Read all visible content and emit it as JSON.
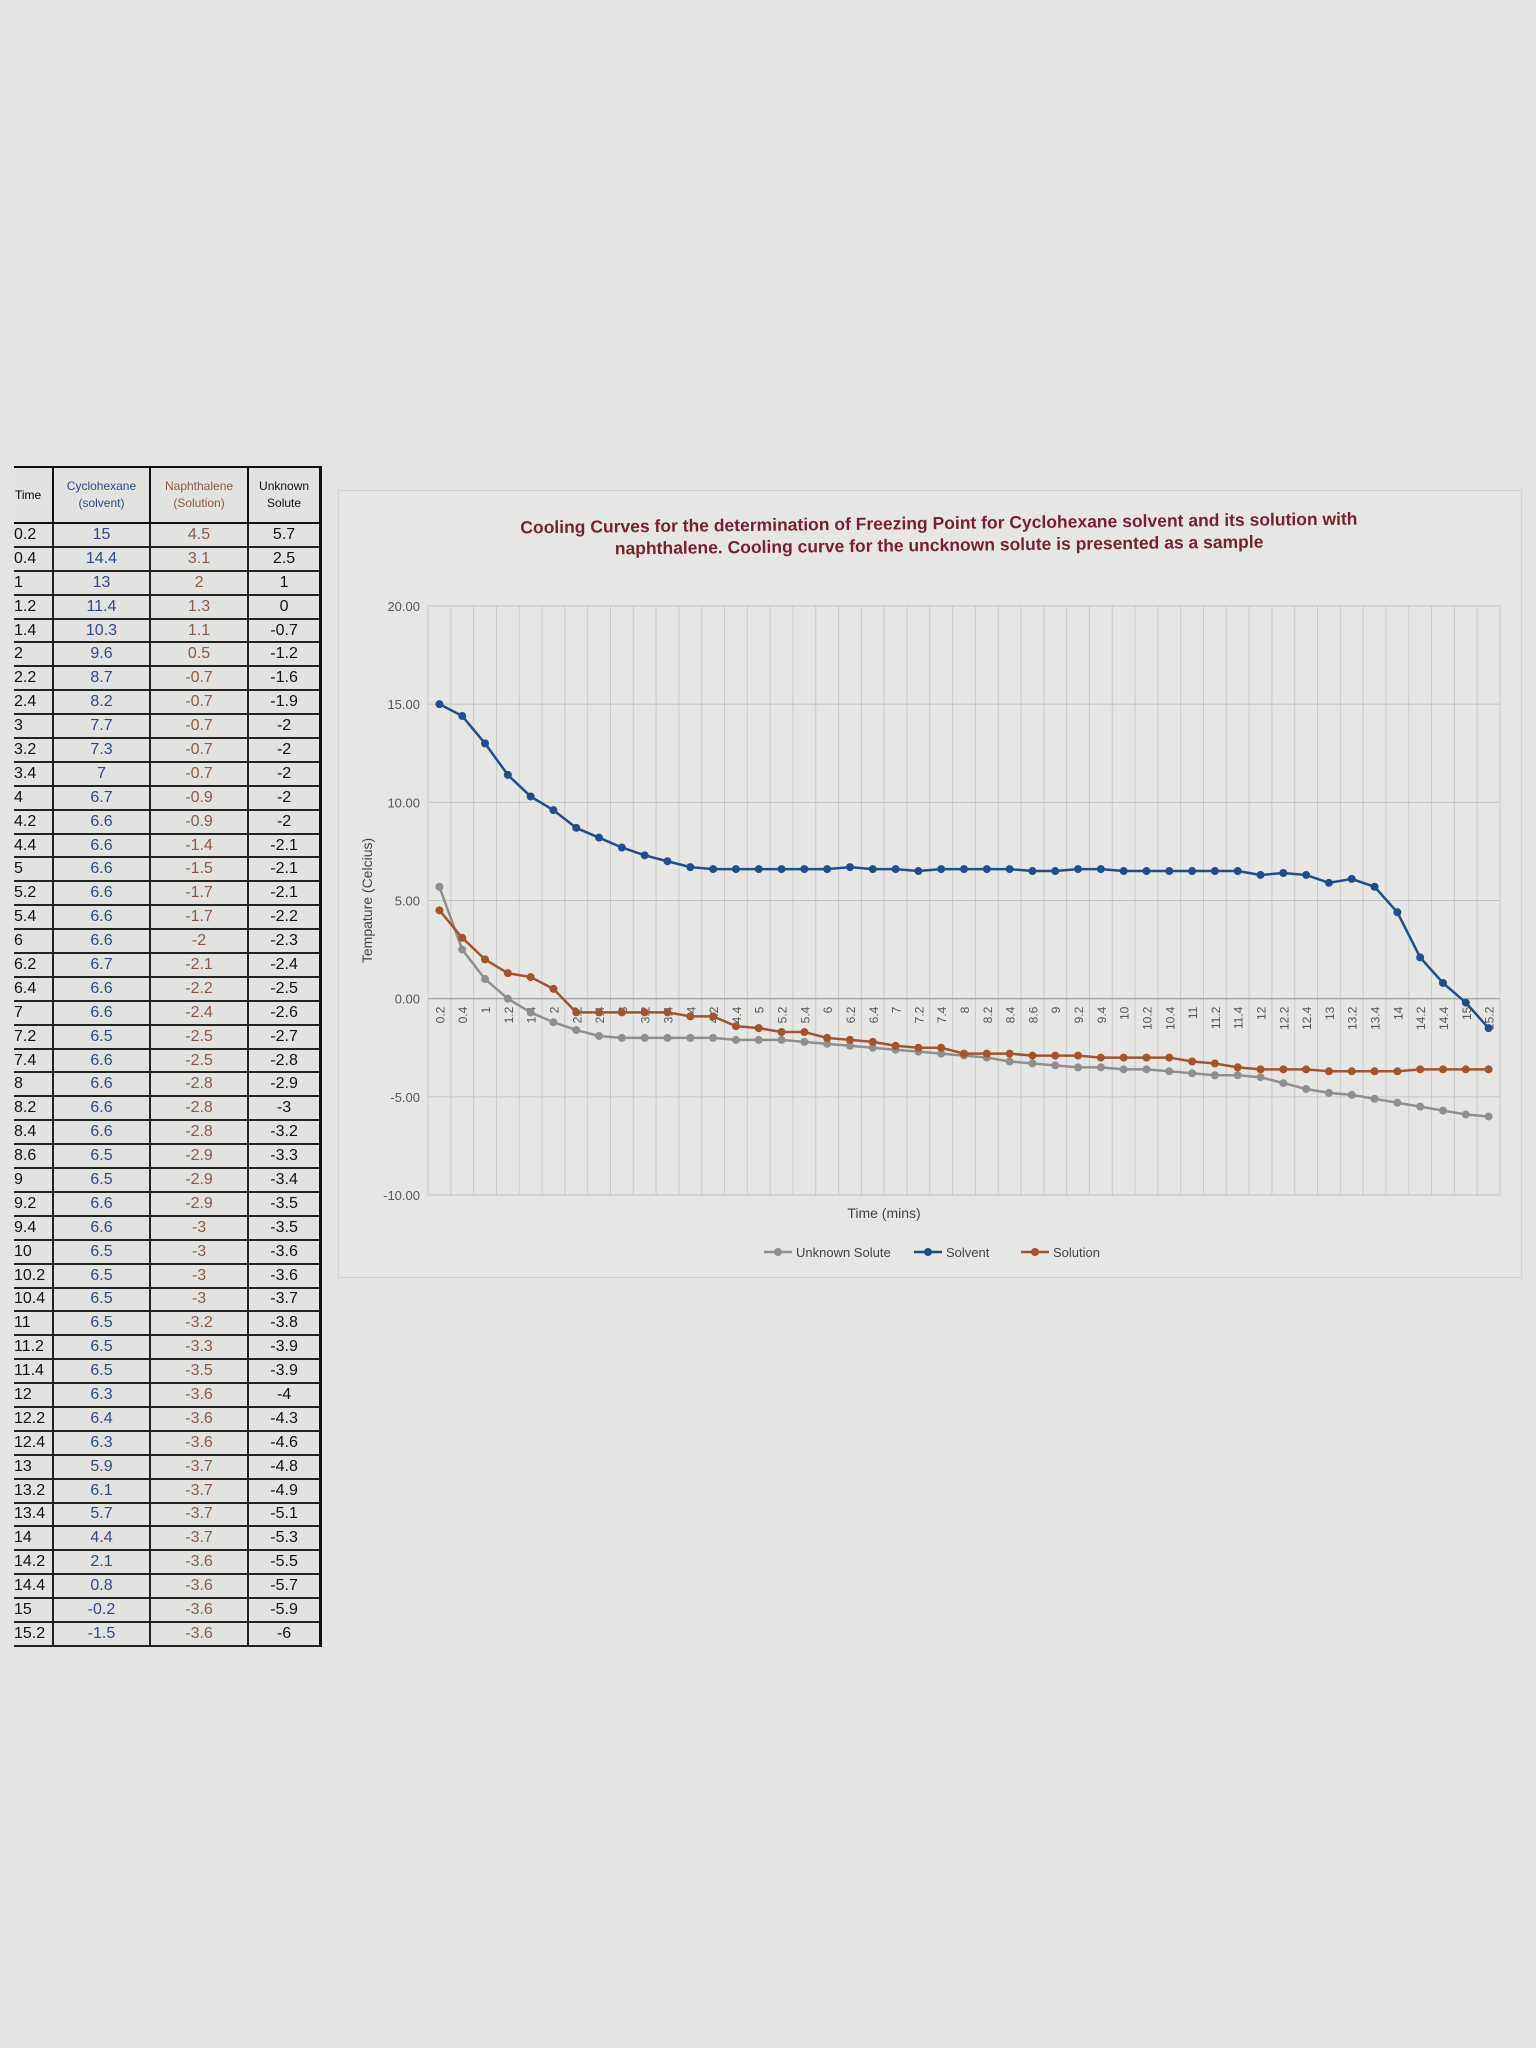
{
  "table": {
    "headers": [
      "Time",
      "Cyclohexane (solvent)",
      "Naphthalene (Solution)",
      "Unknown Solute"
    ],
    "rows": [
      [
        "0.2",
        "15",
        "4.5",
        "5.7"
      ],
      [
        "0.4",
        "14.4",
        "3.1",
        "2.5"
      ],
      [
        "1",
        "13",
        "2",
        "1"
      ],
      [
        "1.2",
        "11.4",
        "1.3",
        "0"
      ],
      [
        "1.4",
        "10.3",
        "1.1",
        "-0.7"
      ],
      [
        "2",
        "9.6",
        "0.5",
        "-1.2"
      ],
      [
        "2.2",
        "8.7",
        "-0.7",
        "-1.6"
      ],
      [
        "2.4",
        "8.2",
        "-0.7",
        "-1.9"
      ],
      [
        "3",
        "7.7",
        "-0.7",
        "-2"
      ],
      [
        "3.2",
        "7.3",
        "-0.7",
        "-2"
      ],
      [
        "3.4",
        "7",
        "-0.7",
        "-2"
      ],
      [
        "4",
        "6.7",
        "-0.9",
        "-2"
      ],
      [
        "4.2",
        "6.6",
        "-0.9",
        "-2"
      ],
      [
        "4.4",
        "6.6",
        "-1.4",
        "-2.1"
      ],
      [
        "5",
        "6.6",
        "-1.5",
        "-2.1"
      ],
      [
        "5.2",
        "6.6",
        "-1.7",
        "-2.1"
      ],
      [
        "5.4",
        "6.6",
        "-1.7",
        "-2.2"
      ],
      [
        "6",
        "6.6",
        "-2",
        "-2.3"
      ],
      [
        "6.2",
        "6.7",
        "-2.1",
        "-2.4"
      ],
      [
        "6.4",
        "6.6",
        "-2.2",
        "-2.5"
      ],
      [
        "7",
        "6.6",
        "-2.4",
        "-2.6"
      ],
      [
        "7.2",
        "6.5",
        "-2.5",
        "-2.7"
      ],
      [
        "7.4",
        "6.6",
        "-2.5",
        "-2.8"
      ],
      [
        "8",
        "6.6",
        "-2.8",
        "-2.9"
      ],
      [
        "8.2",
        "6.6",
        "-2.8",
        "-3"
      ],
      [
        "8.4",
        "6.6",
        "-2.8",
        "-3.2"
      ],
      [
        "8.6",
        "6.5",
        "-2.9",
        "-3.3"
      ],
      [
        "9",
        "6.5",
        "-2.9",
        "-3.4"
      ],
      [
        "9.2",
        "6.6",
        "-2.9",
        "-3.5"
      ],
      [
        "9.4",
        "6.6",
        "-3",
        "-3.5"
      ],
      [
        "10",
        "6.5",
        "-3",
        "-3.6"
      ],
      [
        "10.2",
        "6.5",
        "-3",
        "-3.6"
      ],
      [
        "10.4",
        "6.5",
        "-3",
        "-3.7"
      ],
      [
        "11",
        "6.5",
        "-3.2",
        "-3.8"
      ],
      [
        "11.2",
        "6.5",
        "-3.3",
        "-3.9"
      ],
      [
        "11.4",
        "6.5",
        "-3.5",
        "-3.9"
      ],
      [
        "12",
        "6.3",
        "-3.6",
        "-4"
      ],
      [
        "12.2",
        "6.4",
        "-3.6",
        "-4.3"
      ],
      [
        "12.4",
        "6.3",
        "-3.6",
        "-4.6"
      ],
      [
        "13",
        "5.9",
        "-3.7",
        "-4.8"
      ],
      [
        "13.2",
        "6.1",
        "-3.7",
        "-4.9"
      ],
      [
        "13.4",
        "5.7",
        "-3.7",
        "-5.1"
      ],
      [
        "14",
        "4.4",
        "-3.7",
        "-5.3"
      ],
      [
        "14.2",
        "2.1",
        "-3.6",
        "-5.5"
      ],
      [
        "14.4",
        "0.8",
        "-3.6",
        "-5.7"
      ],
      [
        "15",
        "-0.2",
        "-3.6",
        "-5.9"
      ],
      [
        "15.2",
        "-1.5",
        "-3.6",
        "-6"
      ]
    ]
  },
  "chart_data": {
    "type": "line",
    "title": "Cooling Curves for the determination of Freezing Point for Cyclohexane solvent and its solution with naphthalene. Cooling curve for the uncknown solute is presented as a sample",
    "xlabel": "Time  (mins)",
    "ylabel": "Tempature (Celcius)",
    "ylim": [
      -10,
      20
    ],
    "yticks": [
      "20.00",
      "15.00",
      "10.00",
      "5.00",
      "0.00",
      "-5.00",
      "-10.00"
    ],
    "grid": true,
    "legend_position": "bottom",
    "categories": [
      "0.2",
      "0.4",
      "1",
      "1.2",
      "1.4",
      "2",
      "2.2",
      "2.4",
      "3",
      "3.2",
      "3.4",
      "4",
      "4.2",
      "4.4",
      "5",
      "5.2",
      "5.4",
      "6",
      "6.2",
      "6.4",
      "7",
      "7.2",
      "7.4",
      "8",
      "8.2",
      "8.4",
      "8.6",
      "9",
      "9.2",
      "9.4",
      "10",
      "10.2",
      "10.4",
      "11",
      "11.2",
      "11.4",
      "12",
      "12.2",
      "12.4",
      "13",
      "13.2",
      "13.4",
      "14",
      "14.2",
      "14.4",
      "15",
      "15.2"
    ],
    "series": [
      {
        "name": "Unknown Solute",
        "color": "#8f8f8f",
        "values": [
          5.7,
          2.5,
          1,
          0,
          -0.7,
          -1.2,
          -1.6,
          -1.9,
          -2,
          -2,
          -2,
          -2,
          -2,
          -2.1,
          -2.1,
          -2.1,
          -2.2,
          -2.3,
          -2.4,
          -2.5,
          -2.6,
          -2.7,
          -2.8,
          -2.9,
          -3,
          -3.2,
          -3.3,
          -3.4,
          -3.5,
          -3.5,
          -3.6,
          -3.6,
          -3.7,
          -3.8,
          -3.9,
          -3.9,
          -4,
          -4.3,
          -4.6,
          -4.8,
          -4.9,
          -5.1,
          -5.3,
          -5.5,
          -5.7,
          -5.9,
          -6
        ]
      },
      {
        "name": "Solvent",
        "color": "#1f4e8c",
        "values": [
          15,
          14.4,
          13,
          11.4,
          10.3,
          9.6,
          8.7,
          8.2,
          7.7,
          7.3,
          7,
          6.7,
          6.6,
          6.6,
          6.6,
          6.6,
          6.6,
          6.6,
          6.7,
          6.6,
          6.6,
          6.5,
          6.6,
          6.6,
          6.6,
          6.6,
          6.5,
          6.5,
          6.6,
          6.6,
          6.5,
          6.5,
          6.5,
          6.5,
          6.5,
          6.5,
          6.3,
          6.4,
          6.3,
          5.9,
          6.1,
          5.7,
          4.4,
          2.1,
          0.8,
          -0.2,
          -1.5
        ]
      },
      {
        "name": "Solution",
        "color": "#a4532a",
        "values": [
          4.5,
          3.1,
          2,
          1.3,
          1.1,
          0.5,
          -0.7,
          -0.7,
          -0.7,
          -0.7,
          -0.7,
          -0.9,
          -0.9,
          -1.4,
          -1.5,
          -1.7,
          -1.7,
          -2,
          -2.1,
          -2.2,
          -2.4,
          -2.5,
          -2.5,
          -2.8,
          -2.8,
          -2.8,
          -2.9,
          -2.9,
          -2.9,
          -3,
          -3,
          -3,
          -3,
          -3.2,
          -3.3,
          -3.5,
          -3.6,
          -3.6,
          -3.6,
          -3.7,
          -3.7,
          -3.7,
          -3.7,
          -3.6,
          -3.6,
          -3.6,
          -3.6
        ]
      }
    ]
  }
}
